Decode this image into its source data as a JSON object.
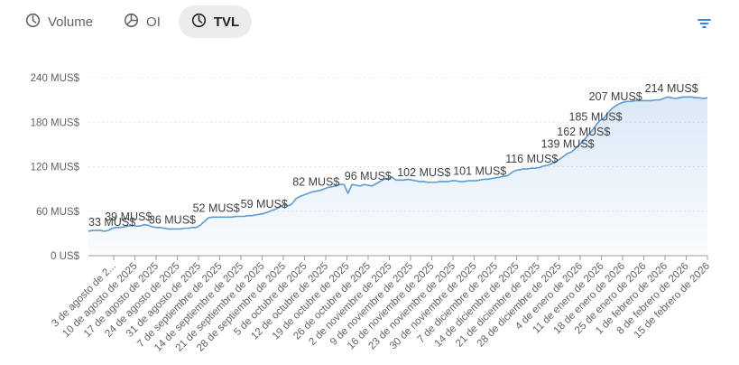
{
  "tabs": [
    {
      "label": "Volume",
      "icon": "clock-icon",
      "active": false
    },
    {
      "label": "OI",
      "icon": "pie-icon",
      "active": false
    },
    {
      "label": "TVL",
      "icon": "clock-icon",
      "active": true
    }
  ],
  "filter_icon": "filter-icon",
  "chart_data": {
    "type": "area",
    "title": "",
    "xlabel": "",
    "ylabel": "",
    "ylim": [
      0,
      240
    ],
    "yticks": [
      {
        "value": 0,
        "label": "0 US$"
      },
      {
        "value": 60,
        "label": "60 MUS$"
      },
      {
        "value": 120,
        "label": "120 MUS$"
      },
      {
        "value": 180,
        "label": "180 MUS$"
      },
      {
        "value": 240,
        "label": "240 MUS$"
      }
    ],
    "xticks": [
      "3 de agosto de 2...",
      "10 de agosto de 2025",
      "17 de agosto de 2025",
      "24 de agosto de 2025",
      "31 de agosto de 2025",
      "7 de septiembre de 2025",
      "14 de septiembre de 2025",
      "21 de septiembre de 2025",
      "28 de septiembre de 2025",
      "5 de octubre de 2025",
      "12 de octubre de 2025",
      "19 de octubre de 2025",
      "26 de octubre de 2025",
      "2 de noviembre de 2025",
      "9 de noviembre de 2025",
      "16 de noviembre de 2025",
      "23 de noviembre de 2025",
      "30 de noviembre de 2025",
      "7 de diciembre de 2025",
      "14 de diciembre de 2025",
      "21 de diciembre de 2025",
      "28 de diciembre de 2025",
      "4 de enero de 2026",
      "11 de enero de 2026",
      "18 de enero de 2026",
      "25 de enero de 2026",
      "1 de febrero de 2026",
      "8 de febrero de 2026",
      "15 de febrero de 2026"
    ],
    "values": [
      33,
      34,
      34,
      34,
      33,
      34,
      37,
      38,
      38,
      39,
      40,
      41,
      40,
      40,
      42,
      41,
      39,
      38,
      38,
      37,
      36,
      36,
      36,
      36,
      37,
      37,
      38,
      38,
      41,
      46,
      51,
      52,
      52,
      52,
      52,
      52,
      52,
      53,
      53,
      53,
      54,
      54,
      55,
      56,
      57,
      59,
      61,
      63,
      66,
      69,
      67,
      70,
      77,
      80,
      82,
      84,
      86,
      87,
      88,
      90,
      92,
      93,
      94,
      96,
      96,
      84,
      96,
      95,
      94,
      96,
      95,
      94,
      97,
      100,
      103,
      104,
      106,
      102,
      102,
      102,
      103,
      102,
      101,
      100,
      100,
      99,
      99,
      99,
      100,
      100,
      100,
      101,
      101,
      100,
      100,
      101,
      101,
      101,
      102,
      103,
      103,
      104,
      105,
      106,
      107,
      108,
      112,
      115,
      116,
      117,
      117,
      118,
      118,
      119,
      121,
      122,
      124,
      127,
      130,
      134,
      138,
      140,
      145,
      150,
      155,
      162,
      168,
      175,
      182,
      185,
      192,
      198,
      202,
      205,
      207,
      208,
      208,
      209,
      209,
      209,
      209,
      209,
      210,
      210,
      212,
      214,
      213,
      212,
      213,
      214,
      214,
      214,
      213,
      213,
      212,
      213
    ],
    "annotations": [
      {
        "index": 0,
        "label": "33 MUS$"
      },
      {
        "index": 10,
        "label": "39 MUS$"
      },
      {
        "index": 21,
        "label": "36 MUS$"
      },
      {
        "index": 32,
        "label": "52 MUS$"
      },
      {
        "index": 44,
        "label": "59 MUS$"
      },
      {
        "index": 57,
        "label": "82 MUS$"
      },
      {
        "index": 70,
        "label": "96 MUS$"
      },
      {
        "index": 84,
        "label": "102 MUS$"
      },
      {
        "index": 98,
        "label": "101 MUS$"
      },
      {
        "index": 111,
        "label": "116 MUS$"
      },
      {
        "index": 120,
        "label": "139 MUS$"
      },
      {
        "index": 124,
        "label": "162 MUS$"
      },
      {
        "index": 127,
        "label": "185 MUS$"
      },
      {
        "index": 132,
        "label": "207 MUS$"
      },
      {
        "index": 146,
        "label": "214 MUS$"
      }
    ],
    "grid": true,
    "line_color": "#5b9bd5"
  }
}
